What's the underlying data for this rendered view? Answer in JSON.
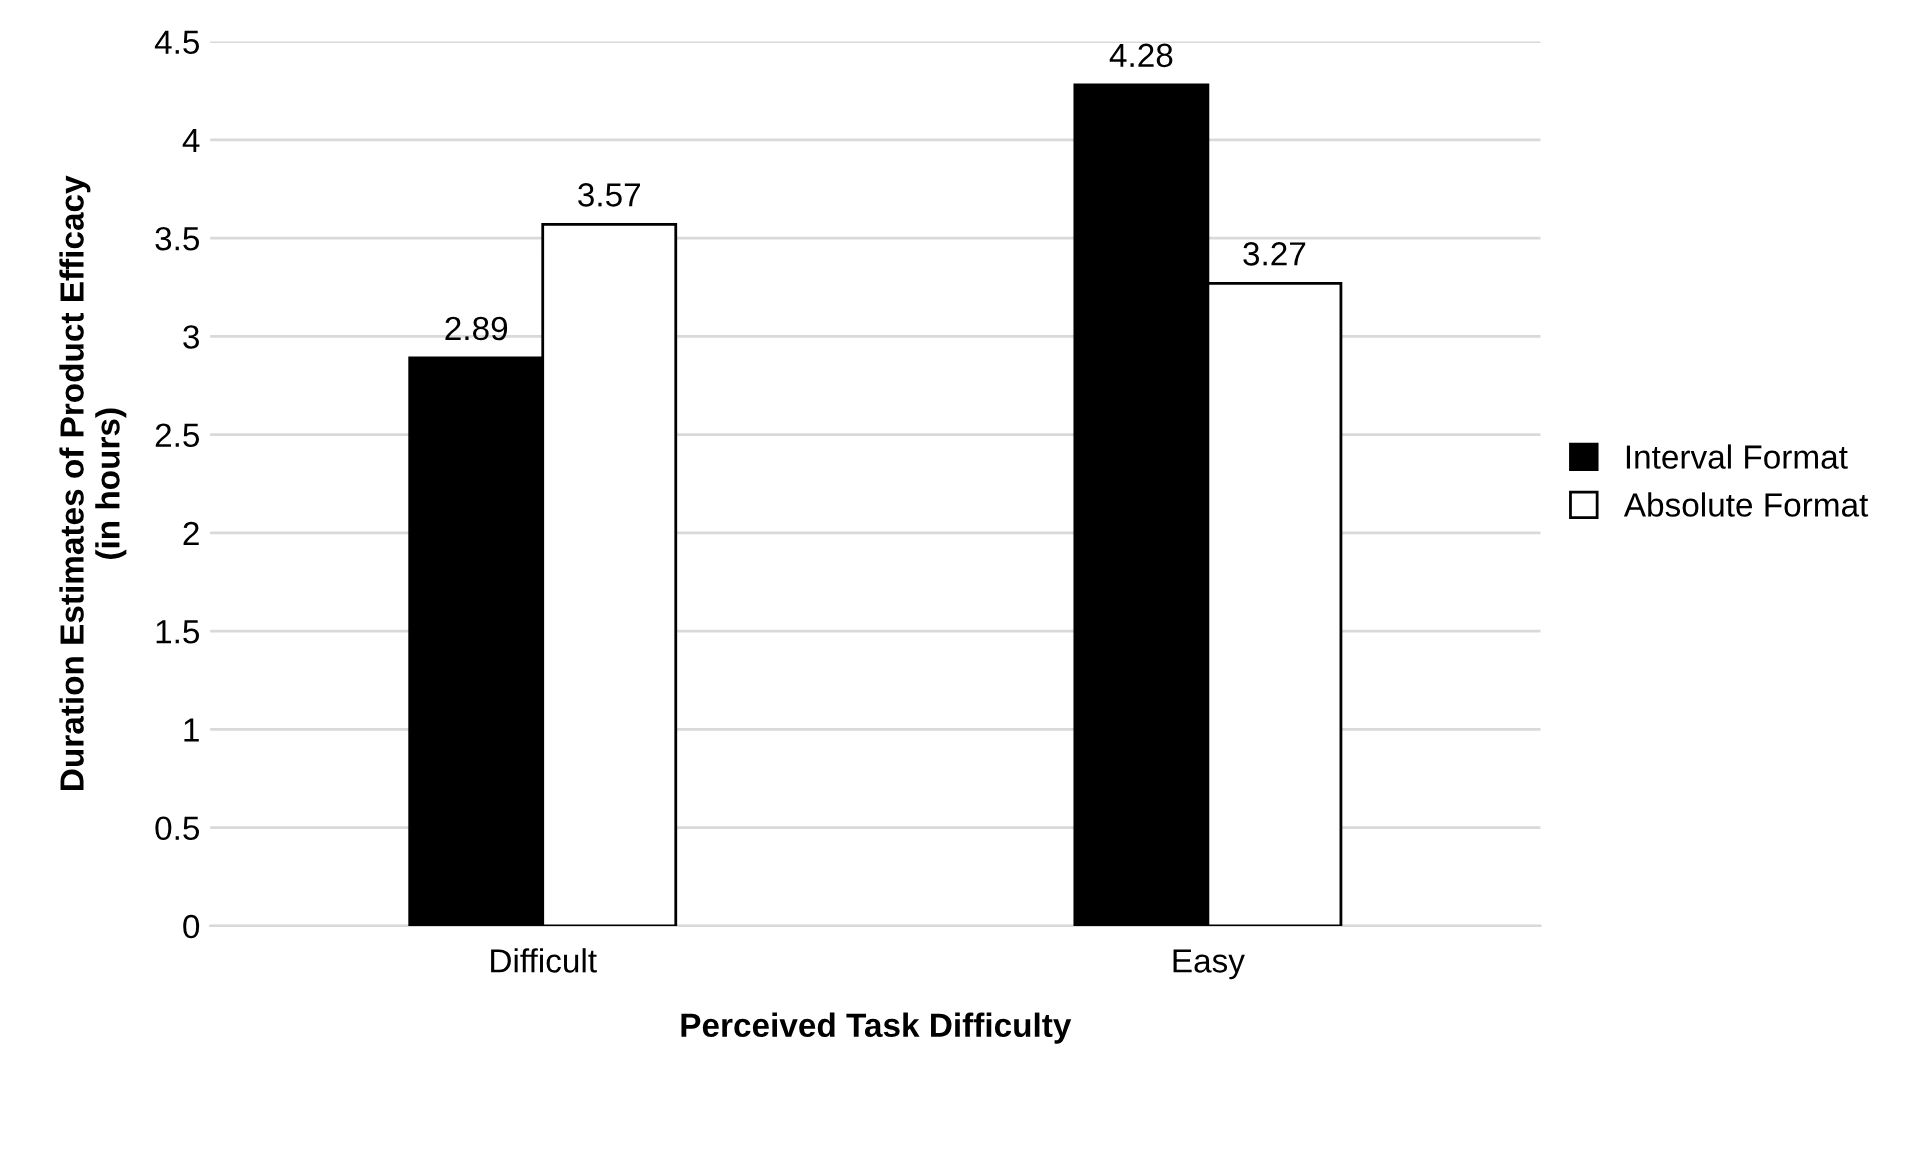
{
  "chart_data": {
    "type": "bar",
    "xlabel": "Perceived Task Difficulty",
    "ylabel": "Duration Estimates of Product Efficacy\n(in hours)",
    "categories": [
      "Difficult",
      "Easy"
    ],
    "series": [
      {
        "name": "Interval Format",
        "color": "#000000",
        "values": [
          2.89,
          4.28
        ]
      },
      {
        "name": "Absolute Format",
        "color": "#ffffff",
        "values": [
          3.57,
          3.27
        ]
      }
    ],
    "ylim": [
      0,
      4.5
    ],
    "yticks": [
      0,
      0.5,
      1,
      1.5,
      2,
      2.5,
      3,
      3.5,
      4,
      4.5
    ],
    "grid": "y",
    "legend": "right",
    "data_labels": true
  }
}
